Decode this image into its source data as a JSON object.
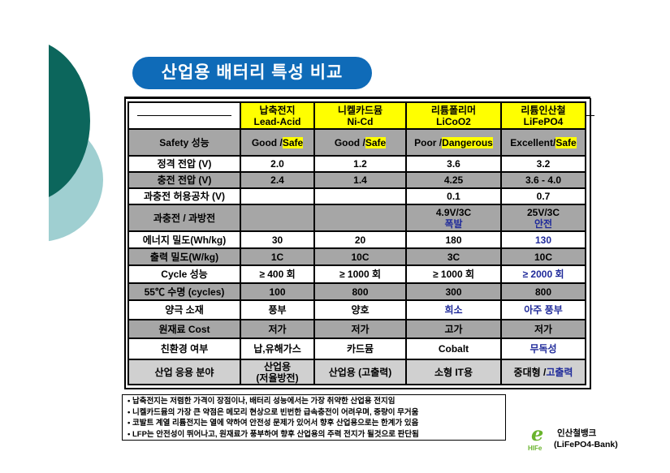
{
  "title": "산업용 배터리 특성 비교",
  "colors": {
    "title_bg": "#0f6bb8",
    "header_bg": "#ffff00",
    "gray_row": "#a6a6a6",
    "highlight_text": "#1f2a9a",
    "deco_dark": "#0c665c",
    "deco_light": "#9fcfd1"
  },
  "table": {
    "headers": [
      {
        "ko": "납축전지",
        "en": "Lead-Acid"
      },
      {
        "ko": "니켈카드뮴",
        "en": "Ni-Cd"
      },
      {
        "ko": "리튬폴리머",
        "en": "LiCoO2"
      },
      {
        "ko": "리튬인산철",
        "en": "LiFePO4"
      }
    ],
    "safety": {
      "label": "Safety 성능",
      "cells": [
        {
          "a": "Good  /",
          "b": "Safe"
        },
        {
          "a": "Good  /",
          "b": "Safe"
        },
        {
          "a": "Poor /",
          "b": "Dangerous"
        },
        {
          "a": "Excellent/",
          "b": "Safe"
        }
      ]
    },
    "rows": [
      {
        "label": "정격 전압 (V)",
        "cells": [
          "2.0",
          "1.2",
          "3.6",
          "3.2"
        ]
      },
      {
        "label": "충전 전압 (V)",
        "cells": [
          "2.4",
          "1.4",
          "4.25",
          "3.6 - 4.0"
        ]
      },
      {
        "label": "과충전 허용공차 (V)",
        "cells": [
          "",
          "",
          "0.1",
          "0.7"
        ]
      }
    ],
    "overcharge": {
      "label": "과충전 / 과방전",
      "cells": [
        {
          "a": "",
          "b": ""
        },
        {
          "a": "",
          "b": ""
        },
        {
          "a": "4.9V/3C",
          "b": "폭발"
        },
        {
          "a": "25V/3C",
          "b": "안전"
        }
      ]
    },
    "rows2": [
      {
        "label": "에너지 밀도(Wh/kg)",
        "cells": [
          "30",
          "20",
          "180",
          "130"
        ]
      },
      {
        "label": "출력 밀도(W/kg)",
        "cells": [
          "1C",
          "10C",
          "3C",
          "10C"
        ]
      },
      {
        "label": "Cycle 성능",
        "cells": [
          "≥ 400 회",
          "≥ 1000 회",
          "≥ 1000 회",
          "≥ 2000 회"
        ]
      },
      {
        "label": "55℃ 수명 (cycles)",
        "cells": [
          "100",
          "800",
          "300",
          "800"
        ]
      },
      {
        "label": "양극 소재",
        "cells": [
          "풍부",
          "양호",
          "희소",
          "아주 풍부"
        ]
      },
      {
        "label": "원재료 Cost",
        "cells": [
          "저가",
          "저가",
          "고가",
          "저가"
        ]
      },
      {
        "label": "친환경 여부",
        "cells": [
          "납,유해가스",
          "카드뮴",
          "Cobalt",
          "무독성"
        ]
      }
    ],
    "application": {
      "label": "산업 응용 분야",
      "c1a": "산업용",
      "c1b": "(저율방전)",
      "c2": "산업용 (고출력)",
      "c3": "소형 IT용",
      "c4a": "중대형 /",
      "c4b": "고출력"
    }
  },
  "notes": [
    "•  납축전지는 저렴한 가격이 장점이나, 배터리 성능에서는 가장 취약한 산업용 전지임",
    "•   니켈카드뮴의 가장 큰 약점은 메모리 현상으로 빈번한 급속충전이 어려우며, 중량이 무거움",
    "•  코발트 계열 리튬전지는 열에 약하여 안전성 문제가 있어서 향후 산업용으로는 한계가 있음",
    "•   LFP는 안전성이 뛰어나고, 원재료가 풍부하여 향후 산업용의 주력 전지가 될것으로 판단됨"
  ],
  "logo": {
    "mark": "e",
    "sub": "HIFe",
    "name": "인산철뱅크",
    "name_en": "(LiFePO4-Bank)"
  }
}
